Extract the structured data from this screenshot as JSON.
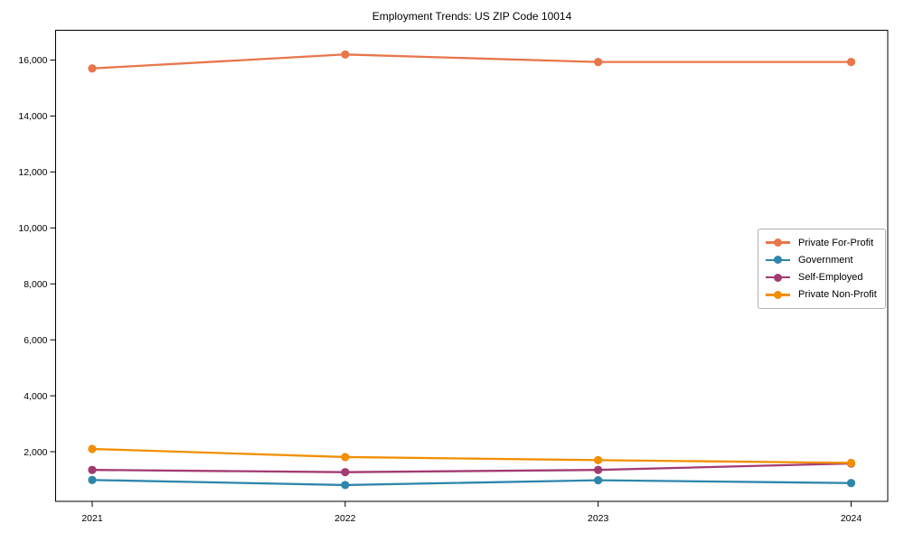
{
  "figure": {
    "background": "#ffffff",
    "axis_color": "#000000"
  },
  "chart_data": {
    "type": "line",
    "title": "Employment Trends: US ZIP Code 10014",
    "xlabel": "",
    "ylabel": "",
    "categories": [
      "2021",
      "2022",
      "2023",
      "2024"
    ],
    "series": [
      {
        "name": "Private For-Profit",
        "color": "#e8764b",
        "values": [
          15700,
          16200,
          15930,
          15930
        ]
      },
      {
        "name": "Government",
        "color": "#2e86ab",
        "values": [
          990,
          810,
          980,
          880
        ]
      },
      {
        "name": "Self-Employed",
        "color": "#a23b72",
        "values": [
          1350,
          1270,
          1350,
          1580
        ]
      },
      {
        "name": "Private Non-Profit",
        "color": "#f18f01",
        "values": [
          2100,
          1810,
          1700,
          1600
        ]
      }
    ],
    "ylim": [
      226,
      17065
    ],
    "yticks": [
      2000,
      4000,
      6000,
      8000,
      10000,
      12000,
      14000,
      16000
    ],
    "ytick_labels": [
      "2,000",
      "4,000",
      "6,000",
      "8,000",
      "10,000",
      "12,000",
      "14,000",
      "16,000"
    ],
    "grid": false,
    "marker": "circle",
    "legend": {
      "position": "center-right",
      "entries": [
        "Private For-Profit",
        "Government",
        "Self-Employed",
        "Private Non-Profit"
      ]
    }
  }
}
